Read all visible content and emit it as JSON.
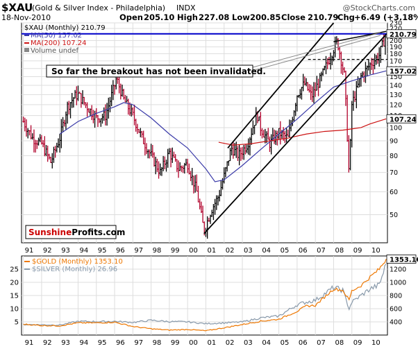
{
  "header": {
    "ticker": "$XAU",
    "name": "(Gold & Silver Index - Philadelphia)",
    "exchange": "INDX",
    "watermark": "@StockCharts.com",
    "date": "18-Nov-2010",
    "open_label": "Open",
    "open": "205.10",
    "high_label": "High",
    "high": "227.08",
    "low_label": "Low",
    "low": "200.85",
    "close_label": "Close",
    "close": "210.79",
    "chg_label": "Chg",
    "chg": "+6.49 (+3.18%)"
  },
  "legend": {
    "main": "$XAU (Monthly) 210.79",
    "ma50": "MA(50) 157.02",
    "ma200": "MA(200) 107.24",
    "volume": "Volume undef"
  },
  "annotation": "So far the breakout has not been invalidated.",
  "logo": {
    "part1": "Sunshine",
    "part2": "Profits.com"
  },
  "colors": {
    "price_up": "#000000",
    "price_down": "#b0002a",
    "ma50": "#3a3aa8",
    "ma200": "#cc1111",
    "hline": "#0000cc",
    "gold": "#ee7700",
    "silver": "#8899aa",
    "logo_red": "#cc0000"
  },
  "right_tags": {
    "close": "210.79",
    "ma50": "157.02",
    "ma200": "107.24",
    "gold": "1353.10"
  },
  "lower_legend": {
    "gold": "$GOLD (Monthly) 1353.10",
    "silver": "$SILVER (Monthly) 26.96"
  },
  "chart_data": [
    {
      "type": "line",
      "title": "$XAU (Gold & Silver Index - Philadelphia) INDX",
      "scale": "log",
      "x_ticks": [
        "91",
        "92",
        "93",
        "94",
        "95",
        "96",
        "97",
        "98",
        "99",
        "00",
        "01",
        "02",
        "03",
        "04",
        "05",
        "06",
        "07",
        "08",
        "09",
        "10"
      ],
      "y_ticks": [
        50,
        60,
        70,
        80,
        90,
        100,
        110,
        120,
        130,
        140,
        150,
        160,
        170,
        180,
        190,
        200,
        210,
        220,
        230
      ],
      "ylim": [
        40,
        230
      ],
      "series": [
        {
          "name": "$XAU (Monthly)",
          "x": [
            1991.0,
            1991.5,
            1992.0,
            1992.5,
            1993.0,
            1993.4,
            1993.8,
            1994.0,
            1994.5,
            1995.0,
            1995.5,
            1996.0,
            1996.1,
            1996.5,
            1997.0,
            1997.5,
            1998.0,
            1998.5,
            1999.0,
            1999.5,
            2000.0,
            2000.5,
            2000.9,
            2001.3,
            2001.7,
            2002.0,
            2002.4,
            2002.8,
            2003.3,
            2003.8,
            2004.0,
            2004.5,
            2005.0,
            2005.5,
            2006.0,
            2006.4,
            2006.8,
            2007.3,
            2007.8,
            2008.2,
            2008.6,
            2008.85,
            2009.0,
            2009.5,
            2010.0,
            2010.5,
            2010.88
          ],
          "y": [
            105,
            92,
            88,
            76,
            92,
            118,
            128,
            130,
            118,
            108,
            110,
            140,
            148,
            125,
            110,
            92,
            80,
            70,
            82,
            72,
            75,
            60,
            44,
            52,
            58,
            68,
            85,
            80,
            88,
            112,
            100,
            88,
            96,
            92,
            130,
            142,
            128,
            148,
            175,
            200,
            150,
            68,
            120,
            150,
            165,
            178,
            210.79
          ]
        },
        {
          "name": "MA(50)",
          "x": [
            1993.0,
            1994.0,
            1995.0,
            1996.0,
            1996.5,
            1997.0,
            1998.0,
            1999.0,
            2000.0,
            2001.0,
            2001.5,
            2002.0,
            2003.0,
            2004.0,
            2005.0,
            2006.0,
            2007.0,
            2008.0,
            2009.0,
            2010.0,
            2010.88
          ],
          "y": [
            95,
            105,
            112,
            118,
            122,
            120,
            108,
            95,
            85,
            72,
            65,
            66,
            74,
            84,
            95,
            107,
            122,
            138,
            145,
            152,
            157.02
          ]
        },
        {
          "name": "MA(200)",
          "x": [
            2001.7,
            2002.5,
            2003.5,
            2004.5,
            2005.5,
            2006.5,
            2007.5,
            2008.5,
            2009.5,
            2010.0,
            2010.88
          ],
          "y": [
            89,
            87,
            88,
            90,
            92,
            95,
            97,
            98,
            100,
            103,
            107.24
          ]
        }
      ],
      "horizontal_lines": [
        210.79,
        172
      ],
      "trend_channel": [
        {
          "from": [
            2000.9,
            43
          ],
          "to": [
            2010.88,
            210
          ]
        },
        {
          "from": [
            2002.2,
            85
          ],
          "to": [
            2008.0,
            230
          ]
        }
      ],
      "resistance_line": {
        "from": [
          2008.0,
          198
        ],
        "to": [
          2010.88,
          215
        ]
      }
    },
    {
      "type": "line",
      "title": "$GOLD / $SILVER (Monthly)",
      "x_ticks": [
        "91",
        "92",
        "93",
        "94",
        "95",
        "96",
        "97",
        "98",
        "99",
        "00",
        "01",
        "02",
        "03",
        "04",
        "05",
        "06",
        "07",
        "08",
        "09",
        "10"
      ],
      "y_ticks_left": [
        5,
        10,
        15,
        20,
        25
      ],
      "y_ticks_right": [
        400,
        600,
        800,
        1000,
        1200
      ],
      "ylim_left": [
        0,
        30
      ],
      "ylim_right": [
        200,
        1400
      ],
      "series": [
        {
          "name": "$GOLD (Monthly)",
          "x": [
            1991.0,
            1992.0,
            1993.0,
            1994.0,
            1995.0,
            1996.0,
            1997.0,
            1998.0,
            1999.0,
            2000.0,
            2001.0,
            2002.0,
            2003.0,
            2004.0,
            2005.0,
            2006.0,
            2006.5,
            2007.0,
            2008.0,
            2008.5,
            2008.85,
            2009.0,
            2009.5,
            2010.0,
            2010.5,
            2010.88
          ],
          "y": [
            365,
            345,
            340,
            385,
            385,
            395,
            330,
            295,
            275,
            285,
            265,
            310,
            360,
            410,
            440,
            560,
            640,
            650,
            900,
            880,
            730,
            870,
            950,
            1080,
            1200,
            1353.1
          ]
        },
        {
          "name": "$SILVER (Monthly)",
          "x": [
            1991.0,
            1992.0,
            1993.0,
            1994.0,
            1995.0,
            1996.0,
            1997.0,
            1998.0,
            1999.0,
            2000.0,
            2001.0,
            2002.0,
            2003.0,
            2004.0,
            2005.0,
            2006.0,
            2006.5,
            2007.0,
            2008.0,
            2008.5,
            2008.85,
            2009.0,
            2009.5,
            2010.0,
            2010.5,
            2010.88
          ],
          "y": [
            4.0,
            3.9,
            3.8,
            5.2,
            5.1,
            5.2,
            4.8,
            5.6,
            5.1,
            5.0,
            4.3,
            4.6,
            5.0,
            6.5,
            7.2,
            11.5,
            12.5,
            13.2,
            18,
            17,
            10,
            12.5,
            15,
            17.5,
            19,
            26.96
          ]
        }
      ]
    }
  ]
}
